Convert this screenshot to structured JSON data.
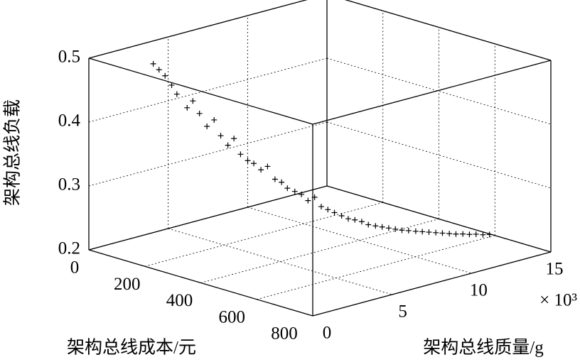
{
  "chart_data": {
    "type": "scatter3d",
    "xlabel": "架构总线成本/元",
    "ylabel": "架构总线质量/g",
    "zlabel": "架构总线负载",
    "y_multiplier": "× 10³",
    "xlim": [
      0,
      800
    ],
    "xticks": [
      0,
      200,
      400,
      600,
      800
    ],
    "ylim": [
      0,
      15000
    ],
    "yticks": [
      {
        "value": 0,
        "label": "0"
      },
      {
        "value": 5000,
        "label": "5"
      },
      {
        "value": 10000,
        "label": "10"
      },
      {
        "value": 15000,
        "label": "15"
      }
    ],
    "zlim": [
      0.2,
      0.5
    ],
    "zticks": [
      0.2,
      0.3,
      0.4,
      0.5
    ],
    "grid": true,
    "series": [
      {
        "color": "#000000",
        "x": [
          145,
          152,
          160,
          170,
          175,
          198,
          205,
          215,
          228,
          240,
          250,
          262,
          270,
          280,
          292,
          300,
          312,
          322,
          335,
          345,
          352,
          365,
          375,
          385,
          395,
          405,
          415,
          425,
          437,
          447,
          457,
          468,
          478,
          490,
          500,
          510,
          520,
          530,
          540,
          552,
          562,
          572,
          583,
          593,
          604,
          614,
          625,
          635,
          645,
          656,
          666
        ],
        "y": [
          1500,
          1740,
          1980,
          2220,
          2460,
          2700,
          2940,
          3180,
          3420,
          3660,
          3900,
          4140,
          4380,
          4620,
          4860,
          5100,
          5340,
          5580,
          5820,
          6060,
          6300,
          6540,
          6780,
          7020,
          7260,
          7500,
          7740,
          7980,
          8220,
          8460,
          8700,
          8940,
          9180,
          9420,
          9660,
          9900,
          10140,
          10380,
          10620,
          10860,
          11100,
          11340,
          11580,
          11820,
          12060,
          12300,
          12540,
          12780,
          13020,
          13260,
          13500
        ],
        "z": [
          0.5,
          0.49,
          0.48,
          0.465,
          0.45,
          0.43,
          0.44,
          0.42,
          0.4,
          0.41,
          0.385,
          0.37,
          0.38,
          0.355,
          0.345,
          0.34,
          0.33,
          0.335,
          0.315,
          0.31,
          0.3,
          0.295,
          0.29,
          0.28,
          0.285,
          0.27,
          0.265,
          0.26,
          0.255,
          0.25,
          0.248,
          0.245,
          0.24,
          0.238,
          0.236,
          0.234,
          0.232,
          0.23,
          0.229,
          0.228,
          0.227,
          0.226,
          0.225,
          0.224,
          0.223,
          0.222,
          0.222,
          0.221,
          0.221,
          0.22,
          0.22
        ]
      }
    ]
  }
}
